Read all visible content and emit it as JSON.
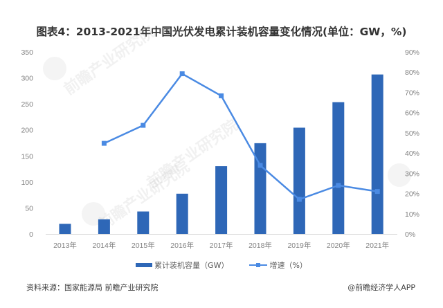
{
  "title": "图表4：2013-2021年中国光伏发电累计装机容量变化情况(单位：GW，%)",
  "source": "资料来源：国家能源局 前瞻产业研究院",
  "credit": "@前瞻经济学人APP",
  "watermark": "前瞻产业研究院",
  "legend": {
    "bar_label": "累计装机容量（GW）",
    "line_label": "增速（%）"
  },
  "colors": {
    "bar": "#2e67b7",
    "line": "#4a8ae3",
    "axis": "#d9d9d9",
    "tick_text": "#7f7f7f"
  },
  "chart_data": {
    "type": "bar",
    "title": "图表4：2013-2021年中国光伏发电累计装机容量变化情况(单位：GW，%)",
    "categories": [
      "2013年",
      "2014年",
      "2015年",
      "2016年",
      "2017年",
      "2018年",
      "2019年",
      "2020年",
      "2021年"
    ],
    "series": [
      {
        "name": "累计装机容量（GW）",
        "type": "bar",
        "axis": "left",
        "values": [
          19.4,
          28.1,
          43.2,
          77.4,
          130.3,
          174.5,
          204.3,
          253.4,
          306.6
        ]
      },
      {
        "name": "增速（%）",
        "type": "line",
        "axis": "right",
        "values": [
          null,
          44.8,
          53.7,
          79.2,
          68.3,
          33.9,
          17.1,
          24.0,
          21.0
        ]
      }
    ],
    "xlabel": "",
    "ylabel": "",
    "ylim": [
      0,
      350
    ],
    "y_ticks": [
      0,
      50,
      100,
      150,
      200,
      250,
      300,
      350
    ],
    "y2lim": [
      0,
      90
    ],
    "y2_ticks": [
      "0%",
      "10%",
      "20%",
      "30%",
      "40%",
      "50%",
      "60%",
      "70%",
      "80%",
      "90%"
    ],
    "grid": false,
    "legend_position": "bottom"
  }
}
